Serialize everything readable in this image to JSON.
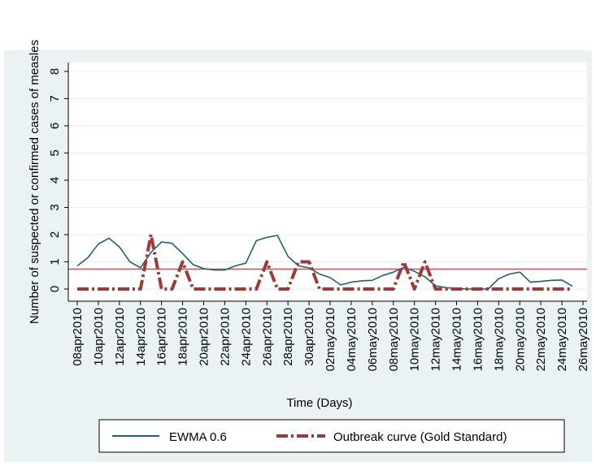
{
  "chart_data": {
    "type": "line",
    "xlabel": "Time (Days)",
    "ylabel": "Number of suspected or confirmed cases of measles",
    "ylim": [
      0,
      8
    ],
    "yticks": [
      "0",
      "1",
      "2",
      "3",
      "4",
      "5",
      "6",
      "7",
      "8"
    ],
    "xlim": [
      0,
      48
    ],
    "x_tick_days": [
      0,
      2,
      4,
      6,
      8,
      10,
      12,
      14,
      16,
      18,
      20,
      22,
      24,
      26,
      28,
      30,
      32,
      34,
      36,
      38,
      40,
      42,
      44,
      46,
      48
    ],
    "x_tick_labels": [
      "08apr2010",
      "10apr2010",
      "12apr2010",
      "14apr2010",
      "16apr2010",
      "18apr2010",
      "20apr2010",
      "22apr2010",
      "24apr2010",
      "26apr2010",
      "28apr2010",
      "30apr2010",
      "02may2010",
      "04may2010",
      "06may2010",
      "08may2010",
      "10may2010",
      "12may2010",
      "14may2010",
      "16may2010",
      "18may2010",
      "20may2010",
      "22may2010",
      "24may2010",
      "26may2010"
    ],
    "reference_line": {
      "y": 0.73,
      "color": "#c0504d"
    },
    "grid": "horizontal",
    "legend_position": "bottom",
    "series": [
      {
        "name": "EWMA 0.6",
        "color": "#1f5f7a",
        "style": "solid",
        "x": [
          "08apr2010",
          "09apr2010",
          "10apr2010",
          "11apr2010",
          "12apr2010",
          "13apr2010",
          "14apr2010",
          "15apr2010",
          "16apr2010",
          "17apr2010",
          "18apr2010",
          "19apr2010",
          "20apr2010",
          "21apr2010",
          "22apr2010",
          "23apr2010",
          "24apr2010",
          "25apr2010",
          "26apr2010",
          "27apr2010",
          "28apr2010",
          "29apr2010",
          "30apr2010",
          "01may2010",
          "02may2010",
          "03may2010",
          "04may2010",
          "05may2010",
          "06may2010",
          "07may2010",
          "08may2010",
          "09may2010",
          "10may2010",
          "11may2010",
          "12may2010",
          "13may2010",
          "14may2010",
          "15may2010",
          "16may2010",
          "17may2010",
          "18may2010",
          "19may2010",
          "20may2010",
          "21may2010",
          "22may2010",
          "23may2010",
          "24may2010",
          "25may2010"
        ],
        "values": [
          0.85,
          1.15,
          1.65,
          1.87,
          1.55,
          1.0,
          0.78,
          1.35,
          1.73,
          1.68,
          1.3,
          0.9,
          0.75,
          0.7,
          0.7,
          0.85,
          0.95,
          1.78,
          1.9,
          1.97,
          1.2,
          0.85,
          0.78,
          0.55,
          0.42,
          0.15,
          0.25,
          0.3,
          0.32,
          0.5,
          0.62,
          0.8,
          0.65,
          0.45,
          0.12,
          0.05,
          0.02,
          0.0,
          0.0,
          0.0,
          0.38,
          0.55,
          0.62,
          0.25,
          0.28,
          0.32,
          0.33,
          0.1
        ]
      },
      {
        "name": "Outbreak curve (Gold Standard)",
        "color": "#9b3a36",
        "style": "dash-dot",
        "x": [
          "08apr2010",
          "09apr2010",
          "10apr2010",
          "11apr2010",
          "12apr2010",
          "13apr2010",
          "14apr2010",
          "15apr2010",
          "16apr2010",
          "17apr2010",
          "18apr2010",
          "19apr2010",
          "20apr2010",
          "21apr2010",
          "22apr2010",
          "23apr2010",
          "24apr2010",
          "25apr2010",
          "26apr2010",
          "27apr2010",
          "28apr2010",
          "29apr2010",
          "30apr2010",
          "01may2010",
          "02may2010",
          "03may2010",
          "04may2010",
          "05may2010",
          "06may2010",
          "07may2010",
          "08may2010",
          "09may2010",
          "10may2010",
          "11may2010",
          "12may2010",
          "13may2010",
          "14may2010",
          "15may2010",
          "16may2010",
          "17may2010",
          "18may2010",
          "19may2010",
          "20may2010",
          "21may2010",
          "22may2010",
          "23may2010",
          "24may2010",
          "25may2010"
        ],
        "values": [
          0,
          0,
          0,
          0,
          0,
          0,
          0,
          2,
          0,
          0,
          1,
          0,
          0,
          0,
          0,
          0,
          0,
          0,
          1,
          0,
          0,
          1,
          1,
          0,
          0,
          0,
          0,
          0,
          0,
          0,
          0,
          1,
          0,
          1,
          0,
          0,
          0,
          0,
          0,
          0,
          0,
          0,
          0,
          0,
          0,
          0,
          0,
          0
        ]
      }
    ],
    "legend": [
      "EWMA 0.6",
      "Outbreak curve (Gold Standard)"
    ]
  }
}
